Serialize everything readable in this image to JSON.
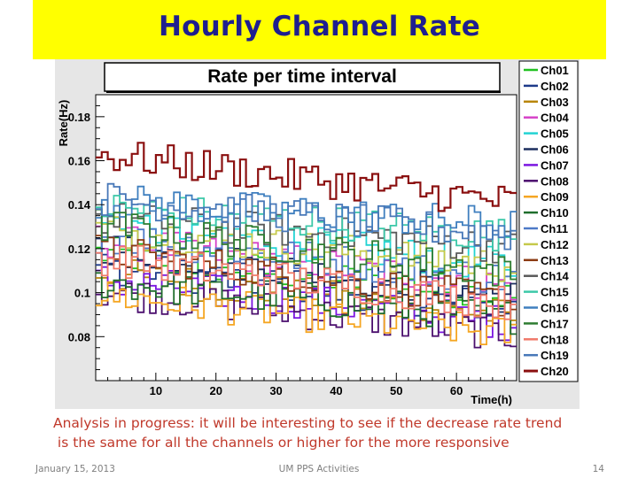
{
  "slide": {
    "title": "Hourly Channel Rate",
    "caption_line1": "Analysis in progress: it will be interesting to see if the decrease rate trend",
    "caption_line2": " is the same for all the channels or higher for the more responsive",
    "footer_date": "January 15, 2013",
    "footer_center": "UM PPS Activities",
    "footer_page": "14"
  },
  "chart_data": {
    "type": "line",
    "step": true,
    "title": "Rate per time interval",
    "xlabel": "Time(h)",
    "ylabel": "Rate(Hz)",
    "xlim": [
      0,
      70
    ],
    "ylim": [
      0.06,
      0.19
    ],
    "xticks": [
      10,
      20,
      30,
      40,
      50,
      60
    ],
    "yticks": [
      0.08,
      0.1,
      0.12,
      0.14,
      0.16,
      0.18
    ],
    "ytick_labels": [
      "0.08",
      "0.1",
      "0.12",
      "0.14",
      "0.16",
      "0.18"
    ],
    "bins": 70,
    "legend_position": "right",
    "series": [
      {
        "name": "Ch01",
        "color": "#22c122",
        "start": 0.118,
        "end": 0.098
      },
      {
        "name": "Ch02",
        "color": "#1e3a8a",
        "start": 0.112,
        "end": 0.093
      },
      {
        "name": "Ch03",
        "color": "#b8860b",
        "start": 0.109,
        "end": 0.089
      },
      {
        "name": "Ch04",
        "color": "#d642c8",
        "start": 0.124,
        "end": 0.103
      },
      {
        "name": "Ch05",
        "color": "#22d3d3",
        "start": 0.133,
        "end": 0.112
      },
      {
        "name": "Ch06",
        "color": "#1c2e5e",
        "start": 0.121,
        "end": 0.098
      },
      {
        "name": "Ch07",
        "color": "#7b16e0",
        "start": 0.106,
        "end": 0.086
      },
      {
        "name": "Ch08",
        "color": "#4b0f6e",
        "start": 0.101,
        "end": 0.081
      },
      {
        "name": "Ch09",
        "color": "#f5a623",
        "start": 0.099,
        "end": 0.081
      },
      {
        "name": "Ch10",
        "color": "#1f6e2c",
        "start": 0.105,
        "end": 0.089
      },
      {
        "name": "Ch11",
        "color": "#4e7ac7",
        "start": 0.126,
        "end": 0.106
      },
      {
        "name": "Ch12",
        "color": "#c5c94a",
        "start": 0.129,
        "end": 0.112
      },
      {
        "name": "Ch13",
        "color": "#8b3a12",
        "start": 0.119,
        "end": 0.096
      },
      {
        "name": "Ch14",
        "color": "#5a5a5a",
        "start": 0.134,
        "end": 0.121
      },
      {
        "name": "Ch15",
        "color": "#3cc8a8",
        "start": 0.139,
        "end": 0.126
      },
      {
        "name": "Ch16",
        "color": "#3f7fbf",
        "start": 0.142,
        "end": 0.131
      },
      {
        "name": "Ch17",
        "color": "#2e7d32",
        "start": 0.131,
        "end": 0.109
      },
      {
        "name": "Ch18",
        "color": "#f07a6a",
        "start": 0.116,
        "end": 0.095
      },
      {
        "name": "Ch19",
        "color": "#4878b8",
        "start": 0.143,
        "end": 0.126
      },
      {
        "name": "Ch20",
        "color": "#8b1010",
        "start": 0.163,
        "end": 0.141
      }
    ]
  }
}
